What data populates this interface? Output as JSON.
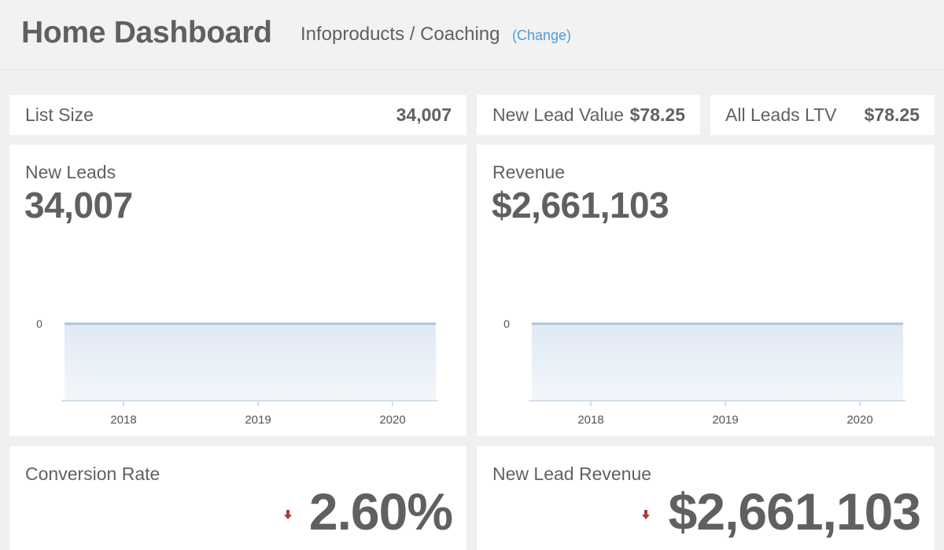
{
  "header": {
    "title": "Home Dashboard",
    "subtitle": "Infoproducts / Coaching",
    "change_label": "(Change)"
  },
  "kpis": {
    "list_size": {
      "label": "List Size",
      "value": "34,007"
    },
    "new_lead_value": {
      "label": "New Lead Value",
      "value": "$78.25"
    },
    "all_leads_ltv": {
      "label": "All Leads LTV",
      "value": "$78.25"
    }
  },
  "new_leads_card": {
    "label": "New Leads",
    "value": "34,007"
  },
  "revenue_card": {
    "label": "Revenue",
    "value": "$2,661,103"
  },
  "conversion_card": {
    "label": "Conversion Rate",
    "value": "2.60%",
    "trend_icon": "arrow-down-icon",
    "trend_color": "#b03a3a"
  },
  "new_lead_revenue_card": {
    "label": "New Lead Revenue",
    "value": "$2,661,103",
    "trend_icon": "arrow-down-icon",
    "trend_color": "#b03a3a"
  },
  "colors": {
    "accent": "#4a9de0",
    "line": "#a9c5de",
    "fill_top": "#dfe9f3",
    "fill_bottom": "#f3f7fb"
  },
  "chart_data": [
    {
      "type": "area",
      "x": [
        "2018",
        "2019",
        "2020"
      ],
      "series": [
        {
          "values": [
            0,
            0,
            0
          ]
        }
      ],
      "yticks": [
        "0"
      ],
      "title": "",
      "xlabel": "",
      "ylabel": ""
    },
    {
      "type": "area",
      "x": [
        "2018",
        "2019",
        "2020"
      ],
      "series": [
        {
          "values": [
            0,
            0,
            0
          ]
        }
      ],
      "yticks": [
        "0"
      ],
      "title": "",
      "xlabel": "",
      "ylabel": ""
    }
  ]
}
